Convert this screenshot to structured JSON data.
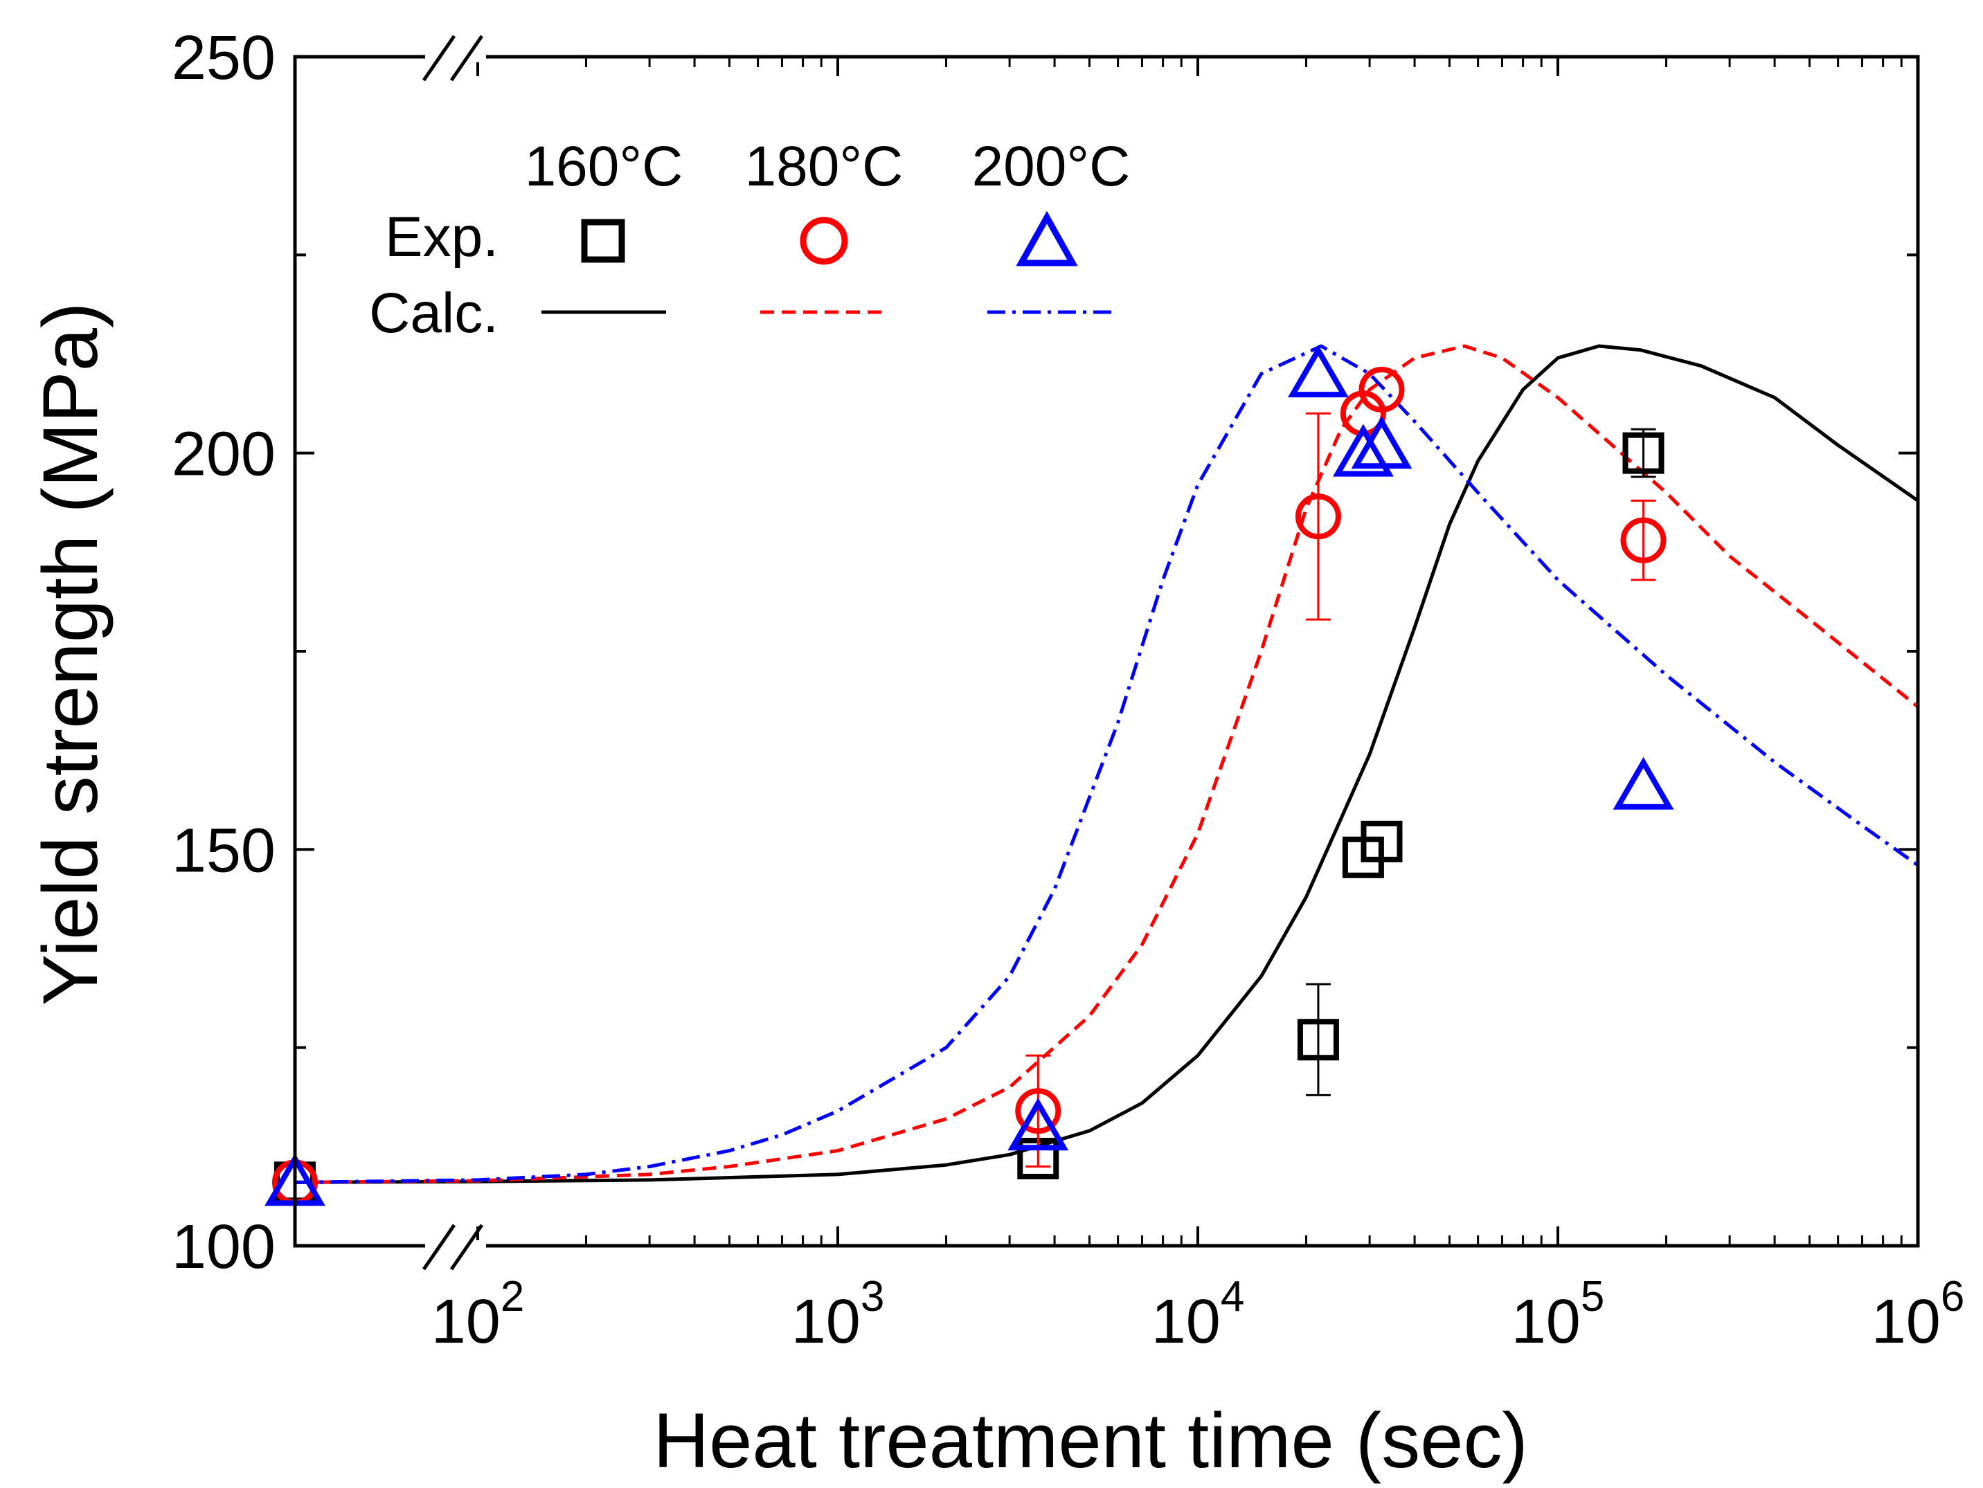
{
  "chart_data": {
    "type": "scatter",
    "title": "",
    "xlabel": "Heat treatment time (sec)",
    "ylabel": "Yield strength (MPa)",
    "xscale": "log",
    "xlim": [
      36,
      1000000
    ],
    "ylim": [
      100,
      250
    ],
    "x_axis_break": "between start and 10^2",
    "y_axis_break": "near bottom-left and top-left",
    "y_ticks": [
      100,
      150,
      200,
      250
    ],
    "y_tick_labels": [
      "100",
      "150",
      "200",
      "250"
    ],
    "x_ticks": [
      {
        "value": 100,
        "base": "10",
        "exp": "2"
      },
      {
        "value": 1000,
        "base": "10",
        "exp": "3"
      },
      {
        "value": 10000,
        "base": "10",
        "exp": "4"
      },
      {
        "value": 100000,
        "base": "10",
        "exp": "5"
      },
      {
        "value": 1000000,
        "base": "10",
        "exp": "6"
      }
    ],
    "legend": {
      "position": "top-left",
      "row_labels": [
        "Exp.",
        "Calc."
      ],
      "column_labels": [
        "160°C",
        "180°C",
        "200°C"
      ]
    },
    "experimental": [
      {
        "temperature": "160°C",
        "marker": "square",
        "color": "#000000",
        "points": [
          {
            "x": 36,
            "y": 108,
            "err": 0
          },
          {
            "x": 3600,
            "y": 111,
            "err": 0
          },
          {
            "x": 21600,
            "y": 126,
            "err": 7
          },
          {
            "x": 28800,
            "y": 149,
            "err": 0
          },
          {
            "x": 32400,
            "y": 151,
            "err": 0
          },
          {
            "x": 172800,
            "y": 200,
            "err": 3
          }
        ]
      },
      {
        "temperature": "180°C",
        "marker": "circle",
        "color": "#ff0000",
        "points": [
          {
            "x": 36,
            "y": 108,
            "err": 0
          },
          {
            "x": 3600,
            "y": 117,
            "err": 7
          },
          {
            "x": 21600,
            "y": 192,
            "err": 13
          },
          {
            "x": 28800,
            "y": 205,
            "err": 0
          },
          {
            "x": 32400,
            "y": 208,
            "err": 0
          },
          {
            "x": 172800,
            "y": 189,
            "err": 5
          }
        ]
      },
      {
        "temperature": "200°C",
        "marker": "triangle",
        "color": "#0000ff",
        "points": [
          {
            "x": 36,
            "y": 108,
            "err": 0
          },
          {
            "x": 3600,
            "y": 115,
            "err": 0
          },
          {
            "x": 21600,
            "y": 210,
            "err": 0
          },
          {
            "x": 28800,
            "y": 200,
            "err": 0
          },
          {
            "x": 32400,
            "y": 201,
            "err": 0
          },
          {
            "x": 172800,
            "y": 158,
            "err": 0
          }
        ]
      }
    ],
    "calculated": [
      {
        "temperature": "160°C",
        "style": "solid",
        "color": "#000000",
        "points": [
          [
            36,
            108
          ],
          [
            100,
            108.1
          ],
          [
            300,
            108.3
          ],
          [
            1000,
            109
          ],
          [
            2000,
            110.2
          ],
          [
            3000,
            111.5
          ],
          [
            5000,
            114.5
          ],
          [
            7000,
            118
          ],
          [
            10000,
            124
          ],
          [
            15000,
            134
          ],
          [
            20000,
            144
          ],
          [
            30000,
            162
          ],
          [
            40000,
            178
          ],
          [
            50000,
            191
          ],
          [
            60000,
            199
          ],
          [
            80000,
            208
          ],
          [
            100000,
            212
          ],
          [
            130000,
            213.5
          ],
          [
            170000,
            213
          ],
          [
            250000,
            211
          ],
          [
            400000,
            207
          ],
          [
            600000,
            201
          ],
          [
            1000000,
            194
          ]
        ]
      },
      {
        "temperature": "180°C",
        "style": "dashed",
        "color": "#ff0000",
        "points": [
          [
            36,
            108
          ],
          [
            100,
            108.2
          ],
          [
            300,
            109
          ],
          [
            500,
            110
          ],
          [
            1000,
            112
          ],
          [
            2000,
            116
          ],
          [
            3000,
            120
          ],
          [
            5000,
            129
          ],
          [
            7000,
            138
          ],
          [
            10000,
            152
          ],
          [
            15000,
            175
          ],
          [
            20000,
            193
          ],
          [
            25000,
            203
          ],
          [
            30000,
            208
          ],
          [
            40000,
            212
          ],
          [
            55000,
            213.5
          ],
          [
            70000,
            212
          ],
          [
            100000,
            207
          ],
          [
            150000,
            200
          ],
          [
            200000,
            195
          ],
          [
            300000,
            187
          ],
          [
            500000,
            179
          ],
          [
            1000000,
            168
          ]
        ]
      },
      {
        "temperature": "200°C",
        "style": "dashdot",
        "color": "#0000ff",
        "points": [
          [
            36,
            108
          ],
          [
            100,
            108.3
          ],
          [
            200,
            109
          ],
          [
            300,
            110
          ],
          [
            500,
            112
          ],
          [
            700,
            114
          ],
          [
            1000,
            117
          ],
          [
            2000,
            125
          ],
          [
            3000,
            134
          ],
          [
            4000,
            145
          ],
          [
            6000,
            166
          ],
          [
            8000,
            184
          ],
          [
            10000,
            196
          ],
          [
            15000,
            210
          ],
          [
            22000,
            213.5
          ],
          [
            30000,
            210
          ],
          [
            40000,
            204
          ],
          [
            60000,
            195
          ],
          [
            100000,
            184
          ],
          [
            200000,
            172
          ],
          [
            400000,
            161
          ],
          [
            700000,
            153
          ],
          [
            1000000,
            148
          ]
        ]
      }
    ]
  }
}
